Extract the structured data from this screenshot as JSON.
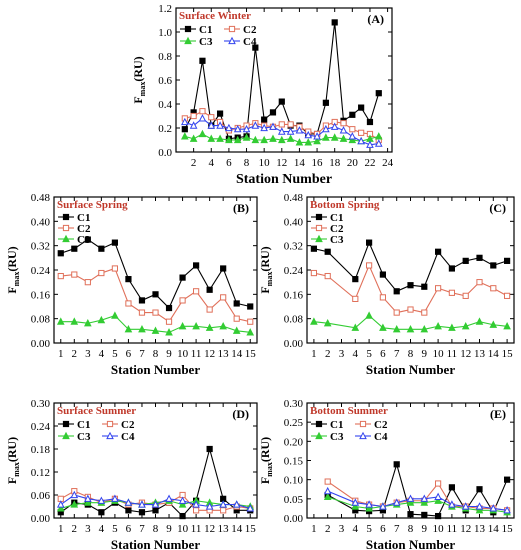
{
  "colors": {
    "C1": "#000000",
    "C2": "#e0705a",
    "C3": "#33cc33",
    "C4": "#3344ee"
  },
  "chart_data": [
    {
      "type": "line",
      "panel_label": "(A)",
      "title": "Surface Winter",
      "xlabel": "Station Number",
      "ylabel": "F_max(RU)",
      "ylim": [
        0,
        1.2
      ],
      "yticks": [
        "0.0",
        "0.2",
        "0.4",
        "0.6",
        "0.8",
        "1.0",
        "1.2"
      ],
      "xlim": [
        0,
        24.5
      ],
      "xticks": [
        2,
        4,
        6,
        8,
        10,
        12,
        14,
        16,
        18,
        20,
        22,
        24
      ],
      "legend_layout": "2col",
      "legend_position": "top-left",
      "x": [
        1,
        2,
        3,
        4,
        5,
        6,
        7,
        8,
        9,
        10,
        11,
        12,
        13,
        14,
        15,
        16,
        17,
        18,
        19,
        20,
        21,
        22,
        23
      ],
      "series": [
        {
          "name": "C1",
          "marker": "square-filled",
          "values": [
            0.19,
            0.33,
            0.76,
            0.22,
            0.32,
            0.11,
            0.12,
            0.13,
            0.87,
            0.27,
            0.33,
            0.42,
            0.22,
            0.22,
            0.15,
            0.15,
            0.41,
            1.08,
            0.26,
            0.31,
            0.37,
            0.25,
            0.49
          ]
        },
        {
          "name": "C2",
          "marker": "square-open",
          "values": [
            0.28,
            0.3,
            0.34,
            0.29,
            0.25,
            0.18,
            0.2,
            0.22,
            0.24,
            0.22,
            0.21,
            0.23,
            0.23,
            0.21,
            0.17,
            0.15,
            0.22,
            0.25,
            0.24,
            0.19,
            0.16,
            0.15,
            0.1
          ]
        },
        {
          "name": "C3",
          "marker": "triangle-filled",
          "values": [
            0.13,
            0.11,
            0.15,
            0.11,
            0.11,
            0.1,
            0.1,
            0.12,
            0.1,
            0.1,
            0.11,
            0.1,
            0.11,
            0.08,
            0.08,
            0.09,
            0.12,
            0.12,
            0.11,
            0.1,
            0.09,
            0.11,
            0.13
          ]
        },
        {
          "name": "C4",
          "marker": "triangle-open",
          "values": [
            0.25,
            0.22,
            0.28,
            0.22,
            0.22,
            0.2,
            0.19,
            0.19,
            0.22,
            0.2,
            0.21,
            0.17,
            0.17,
            0.18,
            0.14,
            0.13,
            0.19,
            0.21,
            0.18,
            0.13,
            0.09,
            0.06,
            0.07
          ]
        }
      ]
    },
    {
      "type": "line",
      "panel_label": "(B)",
      "title": "Surface Spring",
      "xlabel": "Station Number",
      "ylabel": "F_max(RU)",
      "ylim": [
        0,
        0.48
      ],
      "yticks": [
        "0.00",
        "0.08",
        "0.16",
        "0.24",
        "0.32",
        "0.40",
        "0.48"
      ],
      "xlim": [
        0.5,
        15.5
      ],
      "xticks": [
        1,
        2,
        3,
        4,
        5,
        6,
        7,
        8,
        9,
        10,
        11,
        12,
        13,
        14,
        15
      ],
      "legend_layout": "1col",
      "legend_position": "top-left",
      "x": [
        1,
        2,
        3,
        4,
        5,
        6,
        7,
        8,
        9,
        10,
        11,
        12,
        13,
        14,
        15
      ],
      "series": [
        {
          "name": "C1",
          "marker": "square-filled",
          "values": [
            0.295,
            0.31,
            0.34,
            0.31,
            0.33,
            0.21,
            0.14,
            0.16,
            0.115,
            0.215,
            0.255,
            0.175,
            0.245,
            0.13,
            0.12
          ]
        },
        {
          "name": "C2",
          "marker": "square-open",
          "values": [
            0.22,
            0.225,
            0.2,
            0.23,
            0.245,
            0.13,
            0.1,
            0.1,
            0.07,
            0.14,
            0.17,
            0.11,
            0.15,
            0.08,
            0.07
          ]
        },
        {
          "name": "C3",
          "marker": "triangle-filled",
          "values": [
            0.07,
            0.07,
            0.065,
            0.075,
            0.09,
            0.045,
            0.045,
            0.04,
            0.035,
            0.055,
            0.055,
            0.05,
            0.055,
            0.04,
            0.035
          ]
        }
      ]
    },
    {
      "type": "line",
      "panel_label": "(C)",
      "title": "Bottom Spring",
      "xlabel": "Station Number",
      "ylabel": "F_max(RU)",
      "ylim": [
        0,
        0.48
      ],
      "yticks": [
        "0.00",
        "0.08",
        "0.16",
        "0.24",
        "0.32",
        "0.40",
        "0.48"
      ],
      "xlim": [
        0.5,
        15.5
      ],
      "xticks": [
        1,
        2,
        3,
        4,
        5,
        6,
        7,
        8,
        9,
        10,
        11,
        12,
        13,
        14,
        15
      ],
      "legend_layout": "1col",
      "legend_position": "top-left",
      "x": [
        1,
        2,
        4,
        5,
        6,
        7,
        8,
        9,
        10,
        11,
        12,
        13,
        14,
        15
      ],
      "series": [
        {
          "name": "C1",
          "marker": "square-filled",
          "values": [
            0.31,
            0.3,
            0.21,
            0.33,
            0.225,
            0.17,
            0.19,
            0.185,
            0.3,
            0.245,
            0.27,
            0.28,
            0.255,
            0.27
          ]
        },
        {
          "name": "C2",
          "marker": "square-open",
          "values": [
            0.23,
            0.22,
            0.145,
            0.255,
            0.15,
            0.1,
            0.11,
            0.1,
            0.18,
            0.165,
            0.155,
            0.2,
            0.18,
            0.155
          ]
        },
        {
          "name": "C3",
          "marker": "triangle-filled",
          "values": [
            0.07,
            0.065,
            0.05,
            0.09,
            0.05,
            0.045,
            0.045,
            0.045,
            0.055,
            0.05,
            0.055,
            0.07,
            0.06,
            0.055
          ]
        }
      ]
    },
    {
      "type": "line",
      "panel_label": "(D)",
      "title": "Surface Summer",
      "xlabel": "Station Number",
      "ylabel": "F_max(RU)",
      "ylim": [
        0,
        0.3
      ],
      "yticks": [
        "0.00",
        "0.06",
        "0.12",
        "0.18",
        "0.24",
        "0.30"
      ],
      "xlim": [
        0.5,
        15.5
      ],
      "xticks": [
        1,
        2,
        3,
        4,
        5,
        6,
        7,
        8,
        9,
        10,
        11,
        12,
        13,
        14,
        15
      ],
      "legend_layout": "2col",
      "legend_position": "top-left",
      "x": [
        1,
        2,
        3,
        4,
        5,
        6,
        7,
        8,
        9,
        10,
        11,
        12,
        13,
        14,
        15
      ],
      "series": [
        {
          "name": "C1",
          "marker": "square-filled",
          "values": [
            0.015,
            0.04,
            0.035,
            0.015,
            0.04,
            0.02,
            0.015,
            0.02,
            0.04,
            0.005,
            0.045,
            0.18,
            0.05,
            0.02,
            0.02
          ]
        },
        {
          "name": "C2",
          "marker": "square-open",
          "values": [
            0.05,
            0.07,
            0.055,
            0.04,
            0.05,
            0.035,
            0.04,
            0.035,
            0.04,
            0.06,
            0.02,
            0.02,
            0.02,
            0.03,
            0.025
          ]
        },
        {
          "name": "C3",
          "marker": "triangle-filled",
          "values": [
            0.025,
            0.035,
            0.04,
            0.04,
            0.045,
            0.04,
            0.035,
            0.04,
            0.045,
            0.035,
            0.045,
            0.04,
            0.035,
            0.035,
            0.03
          ]
        },
        {
          "name": "C4",
          "marker": "triangle-open",
          "values": [
            0.035,
            0.06,
            0.05,
            0.045,
            0.05,
            0.04,
            0.035,
            0.035,
            0.05,
            0.045,
            0.035,
            0.03,
            0.035,
            0.035,
            0.025
          ]
        }
      ]
    },
    {
      "type": "line",
      "panel_label": "(E)",
      "title": "Bottom Summer",
      "xlabel": "Station Number",
      "ylabel": "F_max(RU)",
      "ylim": [
        0,
        0.3
      ],
      "yticks": [
        "0.00",
        "0.05",
        "0.10",
        "0.15",
        "0.20",
        "0.25",
        "0.30"
      ],
      "xlim": [
        0.5,
        15.5
      ],
      "xticks": [
        1,
        2,
        3,
        4,
        5,
        6,
        7,
        8,
        9,
        10,
        11,
        12,
        13,
        14,
        15
      ],
      "legend_layout": "2col",
      "legend_position": "top-left",
      "x": [
        2,
        4,
        5,
        6,
        7,
        8,
        9,
        10,
        11,
        12,
        13,
        14,
        15
      ],
      "series": [
        {
          "name": "C1",
          "marker": "square-filled",
          "values": [
            0.06,
            0.02,
            0.018,
            0.02,
            0.14,
            0.01,
            0.008,
            0.005,
            0.08,
            0.02,
            0.075,
            0.015,
            0.1
          ]
        },
        {
          "name": "C2",
          "marker": "square-open",
          "values": [
            0.095,
            0.045,
            0.035,
            0.03,
            0.04,
            0.045,
            0.045,
            0.09,
            0.03,
            0.03,
            0.025,
            0.025,
            0.02
          ]
        },
        {
          "name": "C3",
          "marker": "triangle-filled",
          "values": [
            0.055,
            0.03,
            0.025,
            0.03,
            0.035,
            0.04,
            0.04,
            0.045,
            0.03,
            0.025,
            0.02,
            0.02,
            0.015
          ]
        },
        {
          "name": "C4",
          "marker": "triangle-open",
          "values": [
            0.07,
            0.04,
            0.035,
            0.03,
            0.04,
            0.05,
            0.05,
            0.055,
            0.035,
            0.03,
            0.03,
            0.025,
            0.02
          ]
        }
      ]
    }
  ]
}
